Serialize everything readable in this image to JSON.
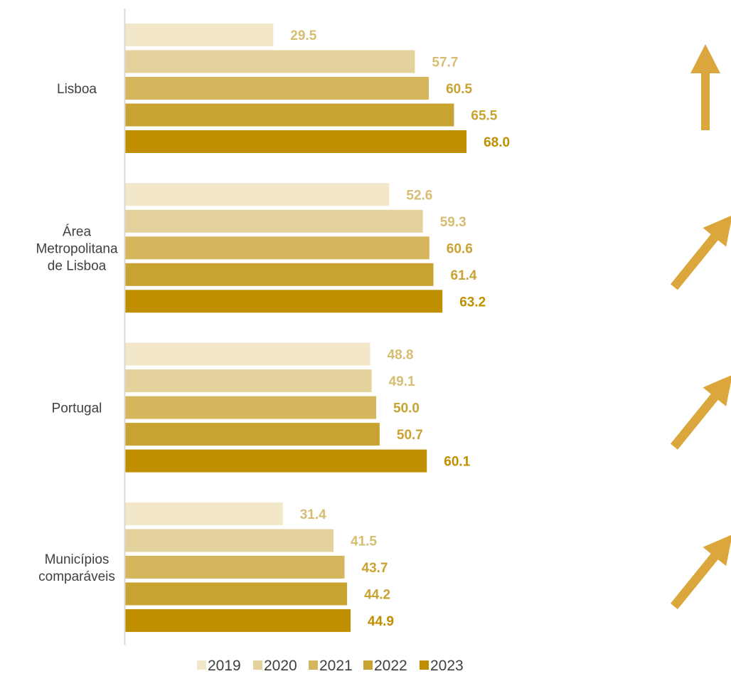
{
  "chart_data": {
    "type": "bar",
    "orientation": "horizontal",
    "title": "",
    "xlabel": "",
    "ylabel": "",
    "xlim": [
      0,
      100
    ],
    "grid": false,
    "legend_position": "bottom",
    "categories": [
      [
        "Lisboa"
      ],
      [
        "Área",
        "Metropolitana",
        "de Lisboa"
      ],
      [
        "Portugal"
      ],
      [
        "Municípios",
        "comparáveis"
      ]
    ],
    "series": [
      {
        "name": "2019",
        "color": "#F2E7C9",
        "label_color": "#D6BD72",
        "values": [
          29.5,
          52.6,
          48.8,
          31.4
        ]
      },
      {
        "name": "2020",
        "color": "#E4D29C",
        "label_color": "#D6BD72",
        "values": [
          57.7,
          59.3,
          49.1,
          41.5
        ]
      },
      {
        "name": "2021",
        "color": "#D5B65C",
        "label_color": "#C9A332",
        "values": [
          60.5,
          60.6,
          50.0,
          43.7
        ]
      },
      {
        "name": "2022",
        "color": "#C9A332",
        "label_color": "#C9A332",
        "values": [
          65.5,
          61.4,
          50.7,
          44.2
        ]
      },
      {
        "name": "2023",
        "color": "#BF8F00",
        "label_color": "#BF8F00",
        "values": [
          68.0,
          63.2,
          60.1,
          44.9
        ]
      }
    ],
    "trend_arrows": [
      {
        "category": "Lisboa",
        "direction": "up"
      },
      {
        "category": "Área Metropolitana de Lisboa",
        "direction": "up-right"
      },
      {
        "category": "Portugal",
        "direction": "up-right"
      },
      {
        "category": "Municípios comparáveis",
        "direction": "up-right"
      }
    ],
    "arrow_color": "#DBA63B",
    "axis_color": "#D9D9D9"
  }
}
